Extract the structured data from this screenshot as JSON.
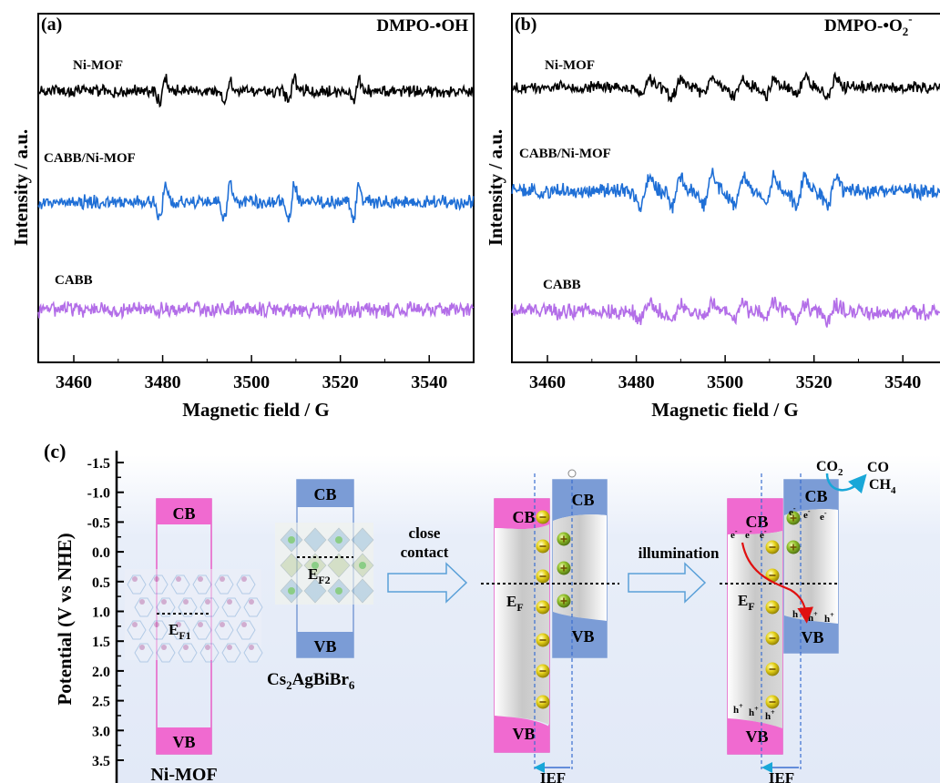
{
  "chart_data": [
    {
      "type": "line",
      "panel_label": "(a)",
      "title": "DMPO-•OH",
      "xlabel": "Magnetic field / G",
      "ylabel": "Intensity / a.u.",
      "xlim": [
        3452,
        3550
      ],
      "x_ticks": [
        3460,
        3480,
        3500,
        3520,
        3540
      ],
      "yticks": false,
      "series": [
        {
          "name": "Ni-MOF",
          "color": "#000000",
          "lines": [
            3480,
            3494.5,
            3509,
            3523.5
          ],
          "amp": 0.65,
          "noise": 0.35
        },
        {
          "name": "CABB/Ni-MOF",
          "color": "#1f6fd6",
          "lines": [
            3480,
            3494.5,
            3509,
            3523.5
          ],
          "amp": 1.0,
          "noise": 0.4
        },
        {
          "name": "CABB",
          "color": "#b36ee8",
          "lines": [],
          "amp": 0,
          "noise": 0.45
        }
      ]
    },
    {
      "type": "line",
      "panel_label": "(b)",
      "title": "DMPO-•O",
      "title_sub": "2",
      "title_sup": "-",
      "xlabel": "Magnetic field / G",
      "ylabel": "Intensity / a.u.",
      "xlim": [
        3452,
        3550
      ],
      "x_ticks": [
        3460,
        3480,
        3500,
        3520,
        3540
      ],
      "yticks": false,
      "series": [
        {
          "name": "Ni-MOF",
          "color": "#000000",
          "lines": [
            3482,
            3489,
            3496,
            3503,
            3510,
            3517,
            3524
          ],
          "amp": 0.5,
          "noise": 0.35
        },
        {
          "name": "CABB/Ni-MOF",
          "color": "#1f6fd6",
          "lines": [
            3482,
            3489,
            3496,
            3503,
            3510,
            3517,
            3524
          ],
          "amp": 0.85,
          "noise": 0.45
        },
        {
          "name": "CABB",
          "color": "#b36ee8",
          "lines": [
            3482,
            3489,
            3496,
            3503,
            3510,
            3517,
            3524
          ],
          "amp": 0.45,
          "noise": 0.45
        }
      ]
    }
  ],
  "diagram": {
    "panel_label": "(c)",
    "ylabel": "Potential (V vs NHE)",
    "y_ticks": [
      "-1.5",
      "-1.0",
      "-0.5",
      "0.0",
      "0.5",
      "1.0",
      "1.5",
      "2.0",
      "2.5",
      "3.0",
      "3.5"
    ],
    "ni_mof": {
      "cb": "CB",
      "vb": "VB",
      "ef_main": "E",
      "ef_sub": "F1",
      "name": "Ni-MOF"
    },
    "cabb": {
      "cb": "CB",
      "vb": "VB",
      "ef_main": "E",
      "ef_sub": "F2",
      "name_parts": [
        "Cs",
        "2",
        "AgBiBr",
        "6"
      ]
    },
    "arrow1_text": [
      "close",
      "contact"
    ],
    "arrow2_text": "illumination",
    "contact": {
      "cb_left": "CB",
      "cb_right": "CB",
      "vb_left": "VB",
      "vb_right": "VB",
      "ef_main": "E",
      "ef_sub": "F",
      "ief": "IEF"
    },
    "illum": {
      "cb_left": "CB",
      "cb_right": "CB",
      "vb_left": "VB",
      "vb_right": "VB",
      "ef_main": "E",
      "ef_sub": "F",
      "ief": "IEF",
      "electron": "e",
      "hole": "h"
    },
    "products": {
      "co2_main": "CO",
      "co2_sub": "2",
      "co": "CO",
      "ch4_main": "CH",
      "ch4_sub": "4"
    }
  },
  "colors": {
    "pink": "#f06ad0",
    "blue_band": "#7b9cd6",
    "gray_gradient": "#b8b8b8",
    "band_edge_pink": "#e040b0",
    "arrow_outline": "#5aa0d8",
    "dashed": "#3a6fd0"
  }
}
